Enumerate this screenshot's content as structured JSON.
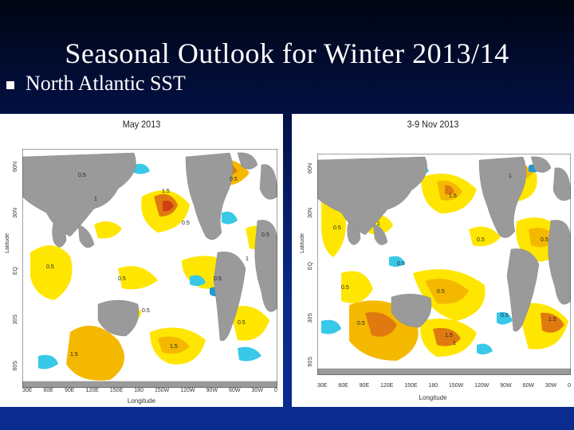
{
  "slide": {
    "title": "Seasonal Outlook for Winter 2013/14",
    "bullet": "North Atlantic SST"
  },
  "colors": {
    "land": "#9a9a9a",
    "ocean": "#ffffff",
    "warm_light": "#ffe600",
    "warm_mid": "#f5b800",
    "warm_strong": "#e07a10",
    "warm_extreme": "#d04010",
    "cool": "#38c8e8",
    "cool_deep": "#1f9ad0"
  },
  "maps": [
    {
      "title": "May 2013",
      "lat_ticks": [
        "60N",
        "30N",
        "EQ",
        "30S",
        "60S"
      ],
      "lon_ticks": [
        "30E",
        "60E",
        "90E",
        "120E",
        "150E",
        "180",
        "150W",
        "120W",
        "90W",
        "60W",
        "30W",
        "0"
      ],
      "xlabel": "Longitude",
      "ylabel": "Latitude",
      "contour_labels": [
        "0.5",
        "1",
        "1.5",
        "0.5",
        "0.5",
        "1",
        "0.5",
        "0.5",
        "1.5",
        "0.5",
        "1.5",
        "0.5",
        "0.5",
        "0.5"
      ]
    },
    {
      "title": "3-9 Nov 2013",
      "lat_ticks": [
        "60N",
        "30N",
        "EQ",
        "30S",
        "60S"
      ],
      "lon_ticks": [
        "30E",
        "60E",
        "90E",
        "120E",
        "150E",
        "180",
        "150W",
        "120W",
        "90W",
        "60W",
        "30W",
        "0"
      ],
      "xlabel": "Longitude",
      "ylabel": "Latitude",
      "contour_labels": [
        "0.5",
        "1.5",
        "1",
        "0.5",
        "0.5",
        "1.5",
        "0.5",
        "1",
        "0.5",
        "1.5",
        "1",
        "0.5",
        "0.5",
        "0.5"
      ]
    }
  ]
}
